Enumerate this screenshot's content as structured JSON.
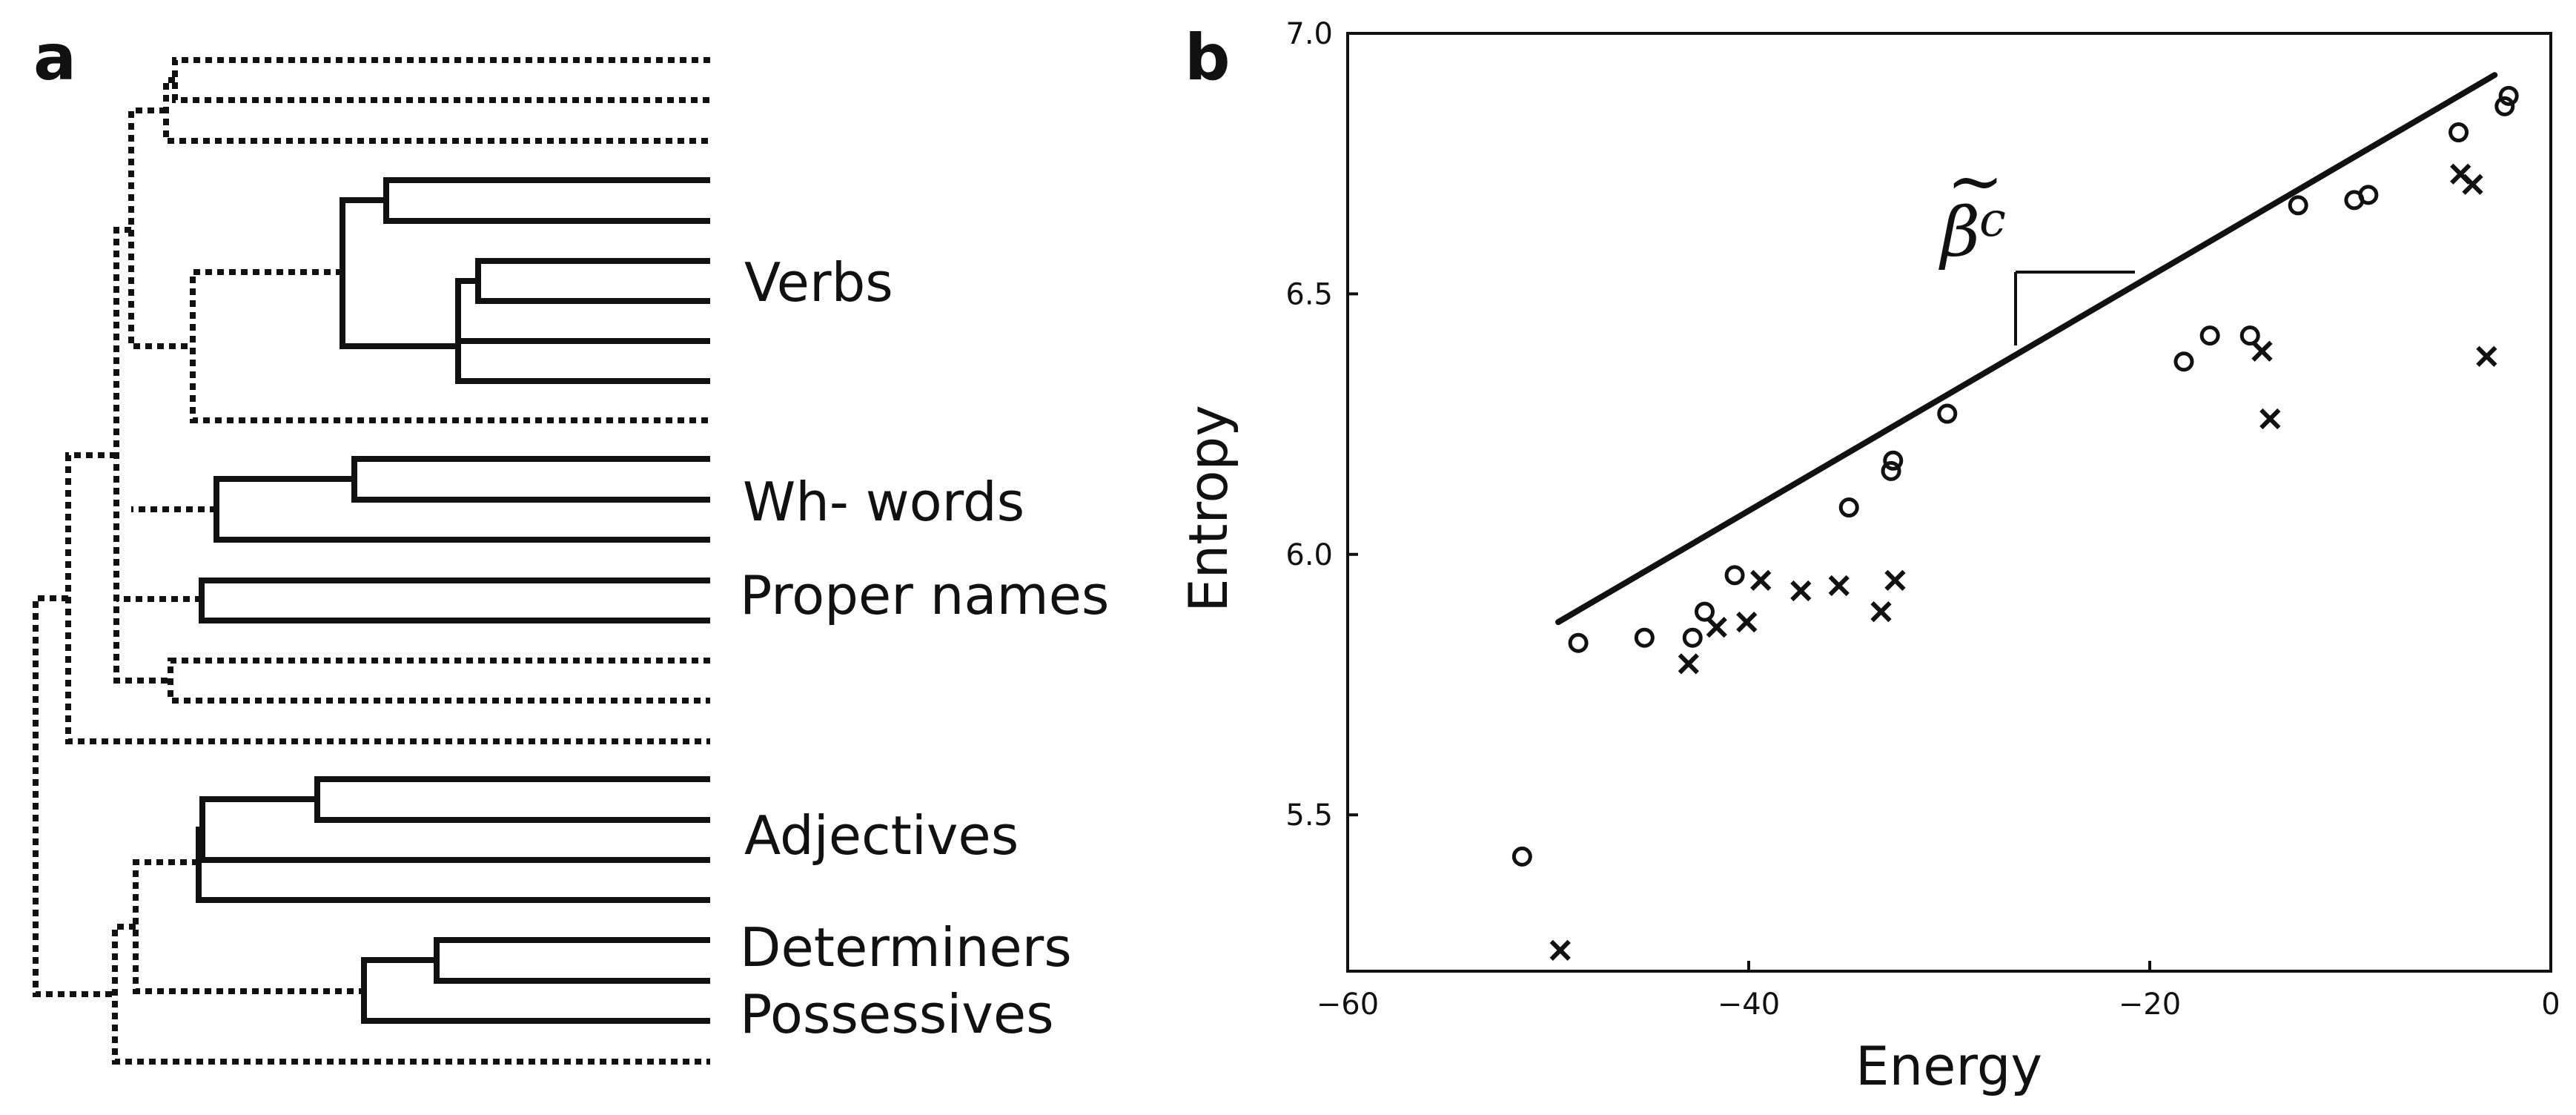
{
  "panel_a": {
    "label": "a",
    "groups": [
      "Verbs",
      "Wh- words",
      "Proper names",
      "Adjectives",
      "Determiners",
      "Possessives"
    ]
  },
  "panel_b": {
    "label": "b"
  },
  "chart_data": {
    "type": "scatter",
    "xlabel": "Energy",
    "ylabel": "Entropy",
    "xlim": [
      -60,
      0
    ],
    "ylim": [
      5.2,
      7.0
    ],
    "xticks": [
      -60,
      -40,
      -20,
      0
    ],
    "xtick_labels": [
      "−60",
      "−40",
      "−20",
      "0"
    ],
    "yticks": [
      5.5,
      6.0,
      6.5,
      7.0
    ],
    "ytick_labels": [
      "5.5",
      "6.0",
      "6.5",
      "7.0"
    ],
    "grid": false,
    "annotation": {
      "symbol": "β",
      "superscript": "c",
      "accent": "~"
    },
    "fit_line": {
      "x": [
        -49.5,
        -2.8
      ],
      "y": [
        5.87,
        6.92
      ]
    },
    "series": [
      {
        "marker": "o",
        "points": [
          [
            -51.3,
            5.42
          ],
          [
            -48.5,
            5.83
          ],
          [
            -45.2,
            5.84
          ],
          [
            -42.8,
            5.84
          ],
          [
            -42.2,
            5.89
          ],
          [
            -40.7,
            5.96
          ],
          [
            -35.0,
            6.09
          ],
          [
            -32.9,
            6.16
          ],
          [
            -32.8,
            6.18
          ],
          [
            -30.1,
            6.27
          ],
          [
            -18.3,
            6.37
          ],
          [
            -17.0,
            6.42
          ],
          [
            -15.0,
            6.42
          ],
          [
            -12.6,
            6.67
          ],
          [
            -9.8,
            6.68
          ],
          [
            -9.1,
            6.69
          ],
          [
            -4.6,
            6.81
          ],
          [
            -2.3,
            6.86
          ],
          [
            -2.1,
            6.88
          ]
        ]
      },
      {
        "marker": "x",
        "points": [
          [
            -49.4,
            5.24
          ],
          [
            -43.0,
            5.79
          ],
          [
            -41.6,
            5.86
          ],
          [
            -40.1,
            5.87
          ],
          [
            -39.4,
            5.95
          ],
          [
            -37.4,
            5.93
          ],
          [
            -35.5,
            5.94
          ],
          [
            -33.4,
            5.89
          ],
          [
            -32.7,
            5.95
          ],
          [
            -14.4,
            6.39
          ],
          [
            -14.0,
            6.26
          ],
          [
            -4.5,
            6.73
          ],
          [
            -3.9,
            6.71
          ],
          [
            -3.2,
            6.38
          ]
        ]
      }
    ]
  }
}
